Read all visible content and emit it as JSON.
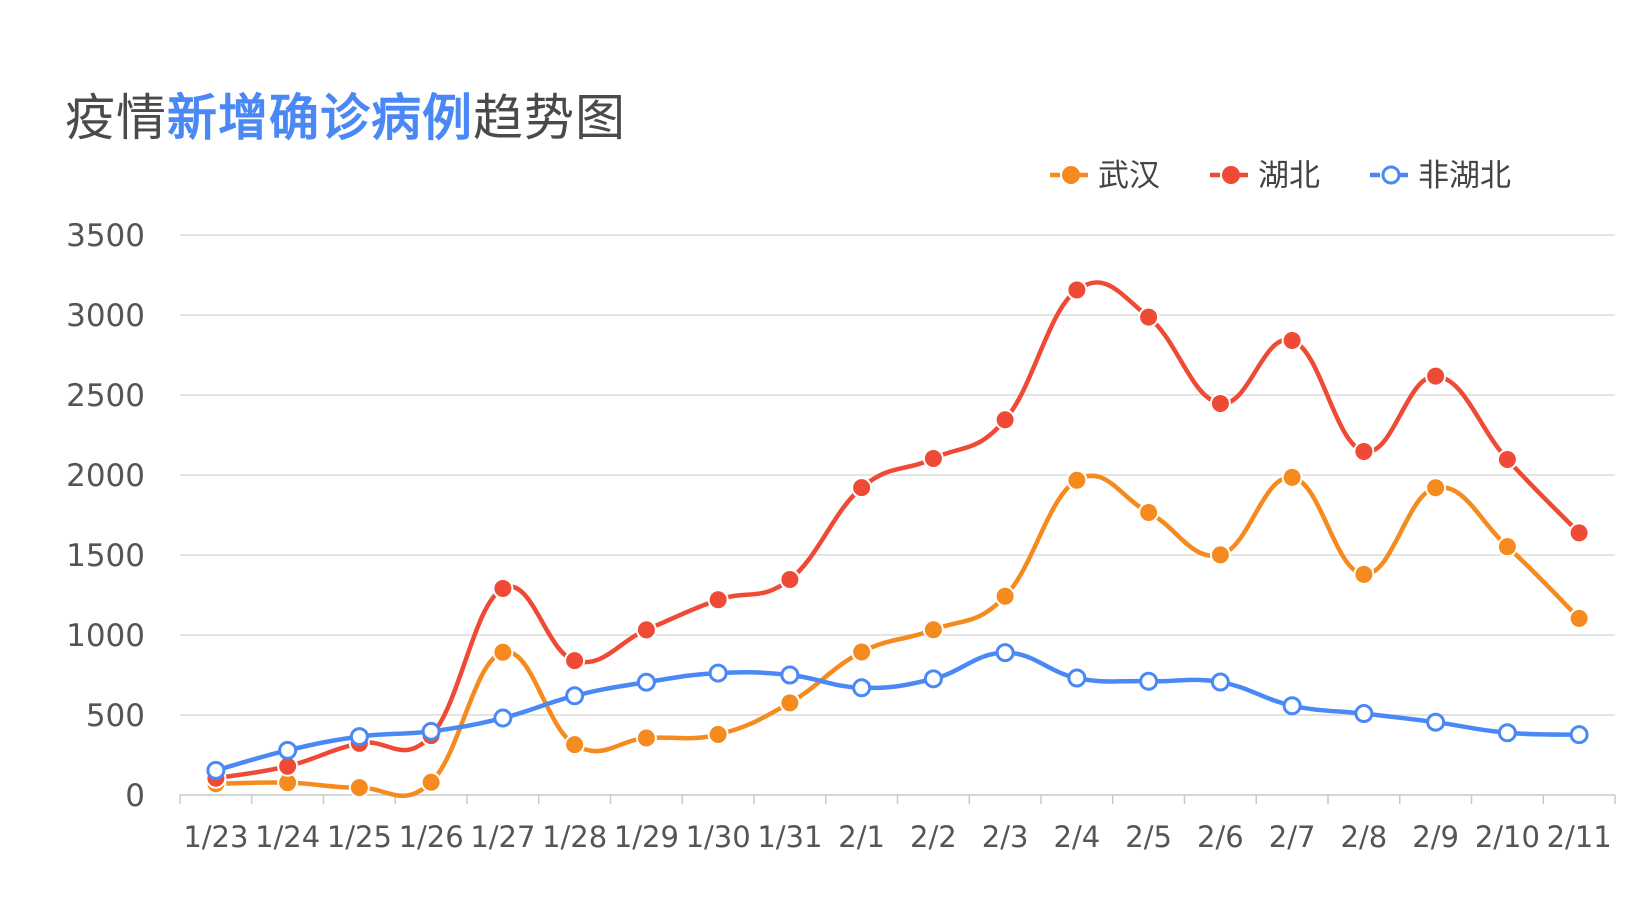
{
  "title": {
    "part1": "疫情",
    "highlight": "新增确诊病例",
    "part2": "趋势图",
    "color_text": "#4a4a4a",
    "color_highlight": "#4a88f5"
  },
  "chart_data": {
    "type": "line",
    "categories": [
      "1/23",
      "1/24",
      "1/25",
      "1/26",
      "1/27",
      "1/28",
      "1/29",
      "1/30",
      "1/31",
      "2/1",
      "2/2",
      "2/3",
      "2/4",
      "2/5",
      "2/6",
      "2/7",
      "2/8",
      "2/9",
      "2/10",
      "2/11"
    ],
    "ylim": [
      0,
      3500
    ],
    "yticks": [
      0,
      500,
      1000,
      1500,
      2000,
      2500,
      3000,
      3500
    ],
    "grid": true,
    "legend": "top-right",
    "series": [
      {
        "name": "武汉",
        "color": "#f58a1f",
        "marker": "filled",
        "values": [
          70,
          77,
          46,
          80,
          892,
          315,
          356,
          378,
          576,
          894,
          1033,
          1242,
          1967,
          1766,
          1501,
          1985,
          1379,
          1920,
          1552,
          1104
        ]
      },
      {
        "name": "湖北",
        "color": "#ee4a35",
        "marker": "filled",
        "values": [
          105,
          180,
          323,
          371,
          1291,
          840,
          1032,
          1220,
          1347,
          1921,
          2103,
          2345,
          3156,
          2987,
          2447,
          2841,
          2147,
          2618,
          2097,
          1638
        ]
      },
      {
        "name": "非湖北",
        "color": "#4a88f5",
        "marker": "hollow",
        "values": [
          154,
          279,
          365,
          398,
          481,
          620,
          705,
          762,
          750,
          670,
          726,
          890,
          731,
          711,
          706,
          558,
          509,
          455,
          389,
          377
        ]
      }
    ]
  }
}
